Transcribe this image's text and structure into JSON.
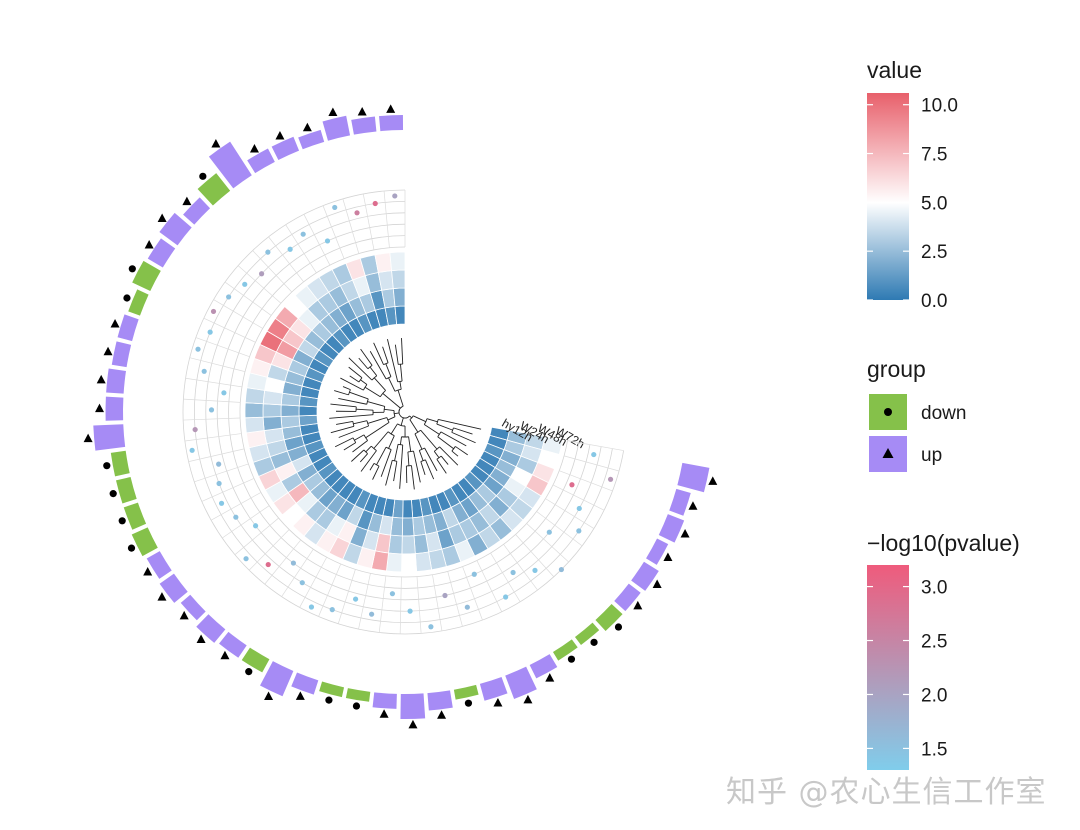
{
  "watermark": "知乎 @农心生信工作室",
  "chart_data": {
    "type": "heatmap",
    "title": "",
    "n_leaves": 48,
    "samples": [
      "hy12h",
      "W24h",
      "W48h",
      "W72h"
    ],
    "value_legend": {
      "title": "value",
      "ticks": [
        "10.0",
        "7.5",
        "5.0",
        "2.5",
        "0.0"
      ],
      "range": [
        0,
        10.6
      ],
      "colors": [
        "#2e7ab3",
        "#ffffff",
        "#e8606b"
      ]
    },
    "group_legend": {
      "title": "group",
      "items": [
        {
          "label": "down",
          "shape": "circle",
          "color": "#85c14a"
        },
        {
          "label": "up",
          "shape": "triangle",
          "color": "#a68bf5"
        }
      ]
    },
    "pvalue_legend": {
      "title": "−log10(pvalue)",
      "ticks": [
        "3.0",
        "2.5",
        "2.0",
        "1.5"
      ],
      "range": [
        1.3,
        3.2
      ],
      "colors": [
        "#80cdeb",
        "#ef5b7c"
      ]
    },
    "heatmap_values": [
      [
        0.5,
        2.5,
        3.5,
        4.5
      ],
      [
        0.5,
        3.0,
        4.0,
        5.0
      ],
      [
        1.0,
        2.0,
        3.0,
        6.0
      ],
      [
        0.5,
        2.5,
        5.0,
        7.0
      ],
      [
        0.5,
        2.0,
        4.5,
        4.0
      ],
      [
        0.5,
        1.5,
        3.0,
        3.5
      ],
      [
        1.0,
        3.0,
        2.0,
        4.0
      ],
      [
        0.5,
        2.5,
        3.5,
        2.5
      ],
      [
        0.5,
        1.5,
        2.5,
        3.5
      ],
      [
        1.0,
        2.0,
        3.0,
        2.0
      ],
      [
        0.5,
        3.5,
        3.0,
        4.5
      ],
      [
        0.5,
        2.0,
        1.5,
        3.0
      ],
      [
        1.0,
        2.5,
        4.0,
        3.5
      ],
      [
        0.5,
        3.0,
        2.5,
        4.0
      ],
      [
        0.5,
        2.0,
        3.5,
        5.0
      ],
      [
        1.5,
        2.5,
        3.0,
        4.5
      ],
      [
        0.5,
        4.0,
        7.0,
        8.0
      ],
      [
        0.5,
        2.5,
        4.0,
        5.5
      ],
      [
        0.5,
        1.0,
        2.0,
        3.5
      ],
      [
        1.0,
        3.5,
        5.5,
        6.5
      ],
      [
        0.5,
        1.5,
        4.5,
        5.5
      ],
      [
        0.5,
        2.0,
        3.0,
        4.0
      ],
      [
        0.5,
        1.5,
        3.0,
        5.5
      ],
      [
        0.5,
        2.5,
        4.5,
        5.0
      ],
      [
        1.0,
        3.0,
        7.5,
        6.0
      ],
      [
        0.5,
        2.0,
        3.0,
        4.5
      ],
      [
        0.5,
        4.0,
        5.5,
        6.5
      ],
      [
        1.0,
        2.0,
        2.5,
        3.0
      ],
      [
        0.5,
        1.5,
        3.5,
        4.0
      ],
      [
        0.5,
        2.5,
        4.0,
        5.5
      ],
      [
        1.5,
        3.0,
        2.0,
        4.0
      ],
      [
        0.5,
        2.0,
        3.0,
        2.5
      ],
      [
        1.0,
        3.0,
        4.0,
        3.5
      ],
      [
        0.5,
        2.0,
        5.0,
        4.5
      ],
      [
        0.5,
        2.5,
        3.5,
        5.5
      ],
      [
        1.0,
        3.0,
        6.0,
        7.0
      ],
      [
        0.5,
        2.0,
        8.5,
        10.0
      ],
      [
        1.0,
        3.5,
        7.0,
        9.5
      ],
      [
        0.5,
        2.5,
        6.0,
        8.0
      ],
      [
        0.5,
        3.0,
        4.5,
        5.0
      ],
      [
        1.0,
        2.5,
        3.0,
        4.5
      ],
      [
        0.5,
        2.0,
        3.0,
        4.0
      ],
      [
        0.5,
        1.5,
        2.5,
        3.5
      ],
      [
        1.0,
        2.5,
        3.5,
        3.0
      ],
      [
        0.5,
        3.0,
        4.5,
        6.0
      ],
      [
        0.5,
        1.0,
        2.5,
        3.0
      ],
      [
        1.0,
        3.0,
        4.0,
        5.5
      ],
      [
        0.5,
        2.0,
        3.5,
        4.5
      ]
    ],
    "points": [
      {
        "x": 2.5,
        "p": 1.4
      },
      {
        "x": 4.5,
        "p": 2.2
      },
      {
        "x": 1.5,
        "p": 2.9
      },
      {
        "x": 3.0,
        "p": 1.4
      },
      {
        "x": 4.0,
        "p": 1.5
      },
      {
        "x": 2.0,
        "p": 1.5
      },
      {
        "x": 5.0,
        "p": 1.6
      },
      {
        "x": 3.5,
        "p": 1.4
      },
      {
        "x": 2.5,
        "p": 1.5
      },
      {
        "x": 4.0,
        "p": 1.4
      },
      {
        "x": 1.0,
        "p": 1.5
      },
      {
        "x": 3.5,
        "p": 1.6
      },
      {
        "x": 2.0,
        "p": 2.0
      },
      {
        "x": 4.5,
        "p": 1.5
      },
      {
        "x": 3.0,
        "p": 1.4
      },
      {
        "x": 1.5,
        "p": 1.5
      },
      {
        "x": 3.5,
        "p": 1.6
      },
      {
        "x": 2.5,
        "p": 1.4
      },
      {
        "x": 4.0,
        "p": 1.5
      },
      {
        "x": 4.5,
        "p": 1.4
      },
      {
        "x": 3.0,
        "p": 1.5
      },
      {
        "x": 2.0,
        "p": 1.6
      },
      {
        "x": 3.5,
        "p": 2.9
      },
      {
        "x": 4.5,
        "p": 1.5
      },
      {
        "x": 2.0,
        "p": 1.4
      },
      {
        "x": 3.0,
        "p": 1.5
      },
      {
        "x": 3.5,
        "p": 1.4
      },
      {
        "x": 3.0,
        "p": 1.5
      },
      {
        "x": 2.5,
        "p": 1.6
      },
      {
        "x": 4.5,
        "p": 1.4
      },
      {
        "x": 4.0,
        "p": 2.2
      },
      {
        "x": 2.5,
        "p": 1.5
      },
      {
        "x": 1.5,
        "p": 1.4
      },
      {
        "x": 3.5,
        "p": 1.5
      },
      {
        "x": 4.5,
        "p": 1.5
      },
      {
        "x": 4.0,
        "p": 1.4
      },
      {
        "x": 4.5,
        "p": 2.3
      },
      {
        "x": 4.0,
        "p": 1.5
      },
      {
        "x": 3.5,
        "p": 1.4
      },
      {
        "x": 3.0,
        "p": 2.1
      },
      {
        "x": 4.0,
        "p": 1.5
      },
      {
        "x": 3.0,
        "p": 1.4
      },
      {
        "x": 3.5,
        "p": 1.5
      },
      {
        "x": 2.0,
        "p": 1.4
      },
      {
        "x": 4.5,
        "p": 1.5
      },
      {
        "x": 3.5,
        "p": 2.6
      },
      {
        "x": 4.0,
        "p": 2.9
      },
      {
        "x": 4.5,
        "p": 2.0
      }
    ],
    "bars": [
      {
        "group": "up",
        "v": 5.5
      },
      {
        "group": "up",
        "v": 3.0
      },
      {
        "group": "up",
        "v": 3.5
      },
      {
        "group": "up",
        "v": 2.5
      },
      {
        "group": "up",
        "v": 3.5
      },
      {
        "group": "up",
        "v": 3.0
      },
      {
        "group": "down",
        "v": 3.0
      },
      {
        "group": "down",
        "v": 2.0
      },
      {
        "group": "down",
        "v": 2.0
      },
      {
        "group": "up",
        "v": 3.0
      },
      {
        "group": "up",
        "v": 5.0
      },
      {
        "group": "up",
        "v": 3.5
      },
      {
        "group": "down",
        "v": 2.0
      },
      {
        "group": "up",
        "v": 3.5
      },
      {
        "group": "up",
        "v": 5.0
      },
      {
        "group": "up",
        "v": 3.0
      },
      {
        "group": "down",
        "v": 2.0
      },
      {
        "group": "down",
        "v": 2.0
      },
      {
        "group": "up",
        "v": 3.0
      },
      {
        "group": "up",
        "v": 5.5
      },
      {
        "group": "down",
        "v": 3.0
      },
      {
        "group": "up",
        "v": 3.0
      },
      {
        "group": "up",
        "v": 3.5
      },
      {
        "group": "up",
        "v": 2.5
      },
      {
        "group": "up",
        "v": 3.5
      },
      {
        "group": "up",
        "v": 3.0
      },
      {
        "group": "down",
        "v": 3.5
      },
      {
        "group": "down",
        "v": 3.0
      },
      {
        "group": "down",
        "v": 3.0
      },
      {
        "group": "down",
        "v": 3.0
      },
      {
        "group": "up",
        "v": 6.0
      },
      {
        "group": "up",
        "v": 3.5
      },
      {
        "group": "up",
        "v": 3.5
      },
      {
        "group": "up",
        "v": 3.0
      },
      {
        "group": "up",
        "v": 3.0
      },
      {
        "group": "down",
        "v": 2.5
      },
      {
        "group": "down",
        "v": 4.0
      },
      {
        "group": "up",
        "v": 3.5
      },
      {
        "group": "up",
        "v": 4.5
      },
      {
        "group": "up",
        "v": 3.0
      },
      {
        "group": "down",
        "v": 4.5
      },
      {
        "group": "up",
        "v": 8.0
      },
      {
        "group": "up",
        "v": 3.0
      },
      {
        "group": "up",
        "v": 3.0
      },
      {
        "group": "up",
        "v": 2.5
      },
      {
        "group": "up",
        "v": 4.0
      },
      {
        "group": "up",
        "v": 3.0
      },
      {
        "group": "up",
        "v": 3.0
      }
    ]
  }
}
